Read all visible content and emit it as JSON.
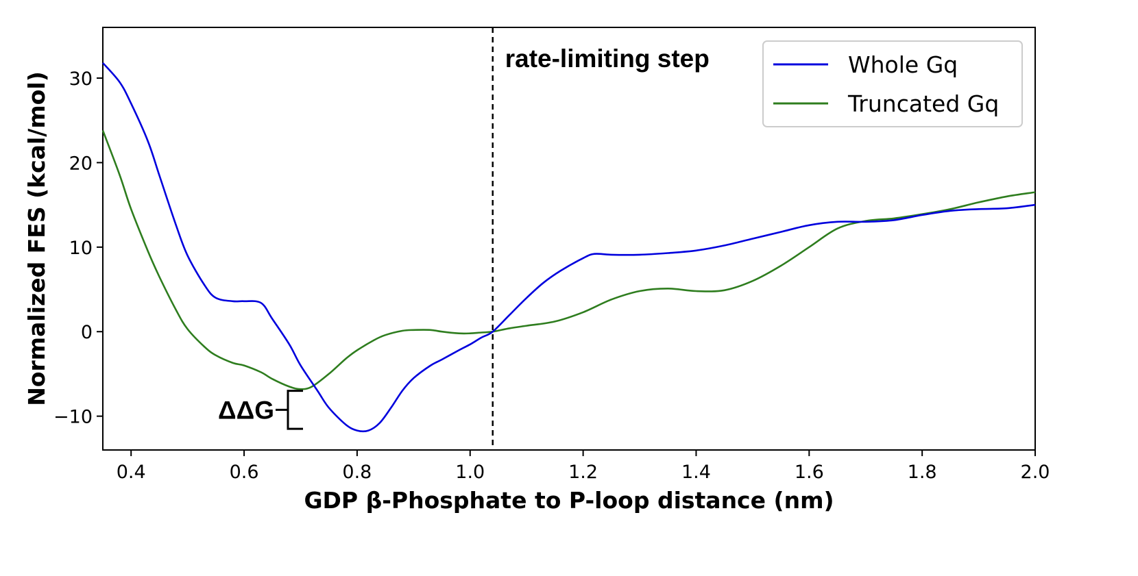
{
  "chart_data": {
    "type": "line",
    "title": "",
    "xlabel": "GDP β-Phosphate to P-loop distance (nm)",
    "ylabel": "Normalized FES (kcal/mol)",
    "xlim": [
      0.35,
      2.0
    ],
    "ylim": [
      -14,
      36
    ],
    "xticks": [
      0.4,
      0.6,
      0.8,
      1.0,
      1.2,
      1.4,
      1.6,
      1.8,
      2.0
    ],
    "xtick_labels": [
      "0.4",
      "0.6",
      "0.8",
      "1.0",
      "1.2",
      "1.4",
      "1.6",
      "1.8",
      "2.0"
    ],
    "yticks": [
      -10,
      0,
      10,
      20,
      30
    ],
    "ytick_labels": [
      "−10",
      "0",
      "10",
      "20",
      "30"
    ],
    "grid": false,
    "legend_position": "top-right",
    "series": [
      {
        "name": "Whole Gq",
        "color": "#0000dd",
        "x": [
          0.35,
          0.38,
          0.4,
          0.43,
          0.45,
          0.48,
          0.5,
          0.53,
          0.55,
          0.58,
          0.6,
          0.63,
          0.65,
          0.68,
          0.7,
          0.73,
          0.75,
          0.78,
          0.8,
          0.82,
          0.84,
          0.86,
          0.88,
          0.9,
          0.93,
          0.95,
          0.98,
          1.0,
          1.02,
          1.04,
          1.07,
          1.1,
          1.13,
          1.16,
          1.2,
          1.22,
          1.25,
          1.3,
          1.35,
          1.4,
          1.45,
          1.5,
          1.55,
          1.6,
          1.65,
          1.7,
          1.75,
          1.8,
          1.85,
          1.9,
          1.95,
          2.0
        ],
        "y": [
          31.8,
          29.5,
          27.0,
          22.5,
          18.5,
          12.5,
          9.0,
          5.5,
          4.0,
          3.6,
          3.6,
          3.4,
          1.5,
          -1.5,
          -4.0,
          -7.0,
          -9.0,
          -11.0,
          -11.7,
          -11.7,
          -10.8,
          -9.0,
          -7.0,
          -5.5,
          -4.0,
          -3.3,
          -2.2,
          -1.5,
          -0.7,
          0.0,
          2.0,
          4.0,
          5.8,
          7.2,
          8.7,
          9.2,
          9.1,
          9.1,
          9.3,
          9.6,
          10.2,
          11.0,
          11.8,
          12.6,
          13.0,
          13.0,
          13.2,
          13.8,
          14.3,
          14.5,
          14.6,
          15.0
        ]
      },
      {
        "name": "Truncated Gq",
        "color": "#2e7d1e",
        "x": [
          0.35,
          0.38,
          0.4,
          0.43,
          0.45,
          0.48,
          0.5,
          0.53,
          0.55,
          0.58,
          0.6,
          0.63,
          0.65,
          0.68,
          0.7,
          0.72,
          0.75,
          0.78,
          0.8,
          0.83,
          0.85,
          0.88,
          0.9,
          0.93,
          0.95,
          0.98,
          1.0,
          1.02,
          1.04,
          1.07,
          1.1,
          1.15,
          1.2,
          1.25,
          1.3,
          1.35,
          1.4,
          1.45,
          1.5,
          1.55,
          1.6,
          1.65,
          1.7,
          1.75,
          1.8,
          1.85,
          1.9,
          1.95,
          2.0
        ],
        "y": [
          23.8,
          18.5,
          14.5,
          9.5,
          6.5,
          2.5,
          0.3,
          -1.8,
          -2.8,
          -3.7,
          -4.0,
          -4.8,
          -5.6,
          -6.5,
          -6.8,
          -6.5,
          -5.0,
          -3.2,
          -2.2,
          -1.0,
          -0.4,
          0.1,
          0.2,
          0.2,
          0.0,
          -0.2,
          -0.2,
          -0.1,
          0.0,
          0.4,
          0.7,
          1.2,
          2.3,
          3.8,
          4.8,
          5.1,
          4.8,
          4.9,
          6.0,
          7.8,
          10.0,
          12.2,
          13.1,
          13.4,
          13.9,
          14.5,
          15.3,
          16.0,
          16.5
        ]
      }
    ],
    "annotations": [
      {
        "text": "rate-limiting step",
        "x": 1.04,
        "type": "vertical-dashed-line"
      },
      {
        "text": "ΔΔG",
        "y_range": [
          -11.5,
          -7.0
        ],
        "type": "bracket"
      }
    ]
  }
}
